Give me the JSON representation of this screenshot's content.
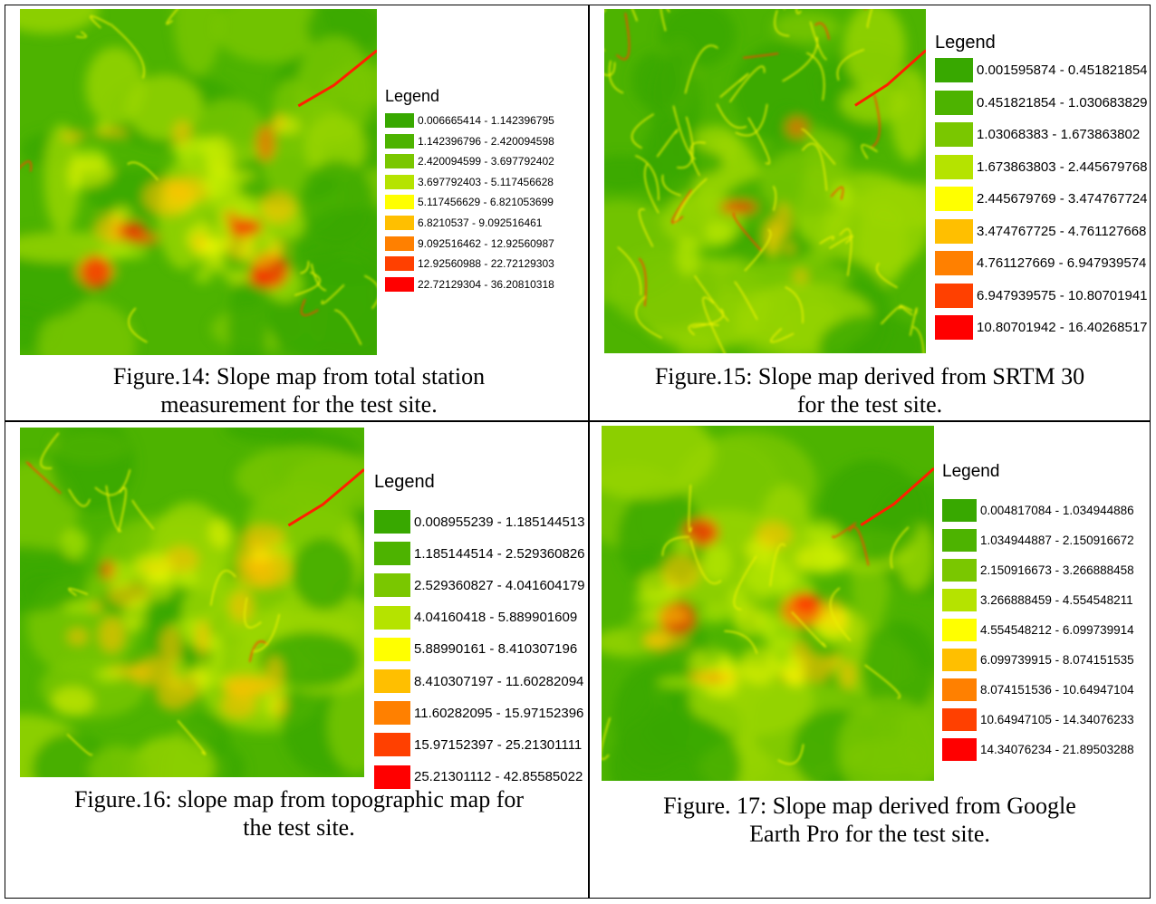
{
  "figures": [
    {
      "legend_title": "Legend",
      "ranges": [
        "0.006665414 - 1.142396795",
        "1.142396796 - 2.420094598",
        "2.420094599 - 3.697792402",
        "3.697792403 - 5.117456628",
        "5.117456629 - 6.821053699",
        "6.8210537 - 9.092516461",
        "9.092516462 - 12.92560987",
        "12.92560988 - 22.72129303",
        "22.72129304 - 36.20810318"
      ],
      "caption_lines": [
        "Figure.14:  Slope map from total station",
        "measurement for the test site."
      ]
    },
    {
      "legend_title": "Legend",
      "ranges": [
        "0.001595874 - 0.451821854",
        "0.451821854 - 1.030683829",
        "1.03068383 - 1.673863802",
        "1.673863803 - 2.445679768",
        "2.445679769 - 3.474767724",
        "3.474767725 - 4.761127668",
        "4.761127669 - 6.947939574",
        "6.947939575 - 10.80701941",
        "10.80701942 - 16.40268517"
      ],
      "caption_lines": [
        "Figure.15: Slope map derived from SRTM 30",
        "for the test site."
      ]
    },
    {
      "legend_title": "Legend",
      "ranges": [
        "0.008955239 - 1.185144513",
        "1.185144514 - 2.529360826",
        "2.529360827 - 4.041604179",
        "4.04160418 - 5.889901609",
        "5.88990161 - 8.410307196",
        "8.410307197 - 11.60282094",
        "11.60282095 - 15.97152396",
        "15.97152397 - 25.21301111",
        "25.21301112 - 42.85585022"
      ],
      "caption_lines": [
        "Figure.16: slope map from topographic map for",
        "the test site."
      ]
    },
    {
      "legend_title": "Legend",
      "ranges": [
        "0.004817084 - 1.034944886",
        "1.034944887 - 2.150916672",
        "2.150916673 - 3.266888458",
        "3.266888459 - 4.554548211",
        "4.554548212 - 6.099739914",
        "6.099739915 - 8.074151535",
        "8.074151536 - 10.64947104",
        "10.64947105 - 14.34076233",
        "14.34076234 - 21.89503288"
      ],
      "caption_lines": [
        "Figure. 17: Slope map derived from Google",
        "Earth Pro for the test site."
      ]
    }
  ],
  "legend_colors": [
    "#38a800",
    "#4db300",
    "#7ac700",
    "#b5e300",
    "#ffff00",
    "#ffbf00",
    "#ff8000",
    "#ff4000",
    "#ff0000"
  ]
}
